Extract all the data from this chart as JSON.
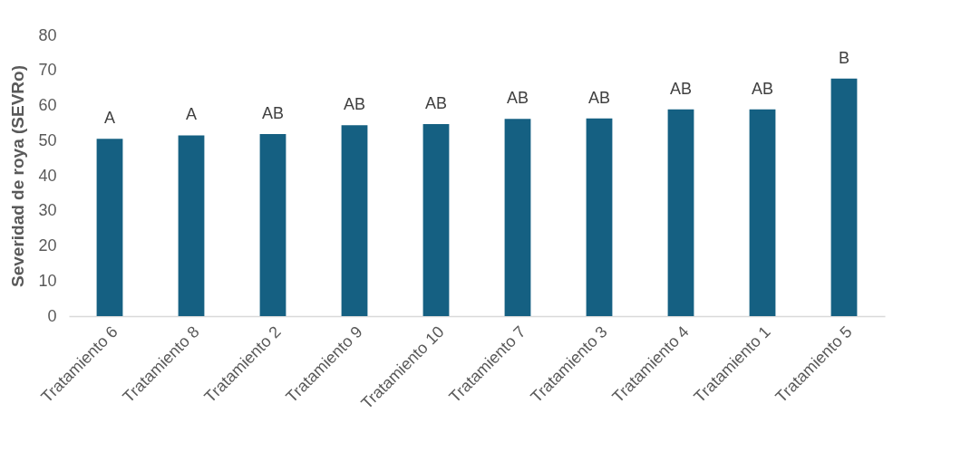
{
  "chart_data": {
    "type": "bar",
    "ylabel": "Severidad de roya (SEVRo)",
    "categories": [
      "Tratamiento 6",
      "Tratamiento 8",
      "Tratamiento 2",
      "Tratamiento 9",
      "Tratamiento 10",
      "Tratamiento 7",
      "Tratamiento 3",
      "Tratamiento 4",
      "Tratamiento 1",
      "Tratamiento 5"
    ],
    "values": [
      50.5,
      51.5,
      51.9,
      54.4,
      54.7,
      56.2,
      56.3,
      58.9,
      58.9,
      67.7
    ],
    "color": "#156082",
    "ylim": [
      0,
      80
    ],
    "yticks": [
      0,
      10,
      20,
      30,
      40,
      50,
      60,
      70,
      80
    ],
    "grid": false,
    "annotations": [
      {
        "text": "A",
        "x": "Tratamiento 6",
        "y": 50.5
      },
      {
        "text": "A",
        "x": "Tratamiento 8",
        "y": 51.5
      },
      {
        "text": "AB",
        "x": "Tratamiento 2",
        "y": 51.9
      },
      {
        "text": "AB",
        "x": "Tratamiento 9",
        "y": 54.4
      },
      {
        "text": "AB",
        "x": "Tratamiento 10",
        "y": 54.7
      },
      {
        "text": "AB",
        "x": "Tratamiento 7",
        "y": 56.2
      },
      {
        "text": "AB",
        "x": "Tratamiento 3",
        "y": 56.3
      },
      {
        "text": "AB",
        "x": "Tratamiento 4",
        "y": 58.9
      },
      {
        "text": "AB",
        "x": "Tratamiento 1",
        "y": 58.9
      },
      {
        "text": "B",
        "x": "Tratamiento 5",
        "y": 67.7
      }
    ]
  }
}
